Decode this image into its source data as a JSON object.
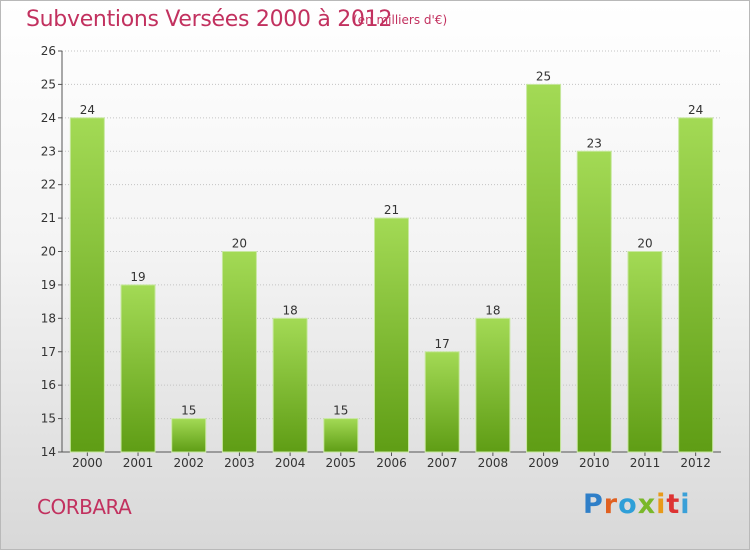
{
  "header": {
    "title": "Subventions Versées 2000 à 2012",
    "subtitle": "(en milliers d'€)"
  },
  "footer": {
    "city": "CORBARA",
    "logo_text": "Proxiti"
  },
  "colors": {
    "title": "#c2315f",
    "bar_light": "#9ed64f",
    "bar_dark": "#62a018",
    "grid": "#bbbbbb"
  },
  "chart_data": {
    "type": "bar",
    "title": "Subventions Versées 2000 à 2012",
    "subtitle": "(en milliers d'€)",
    "xlabel": "",
    "ylabel": "",
    "categories": [
      "2000",
      "2001",
      "2002",
      "2003",
      "2004",
      "2005",
      "2006",
      "2007",
      "2008",
      "2009",
      "2010",
      "2011",
      "2012"
    ],
    "values": [
      24,
      19,
      15,
      20,
      18,
      15,
      21,
      17,
      18,
      25,
      23,
      20,
      24
    ],
    "ylim": [
      14,
      26
    ],
    "yticks": [
      14,
      15,
      16,
      17,
      18,
      19,
      20,
      21,
      22,
      23,
      24,
      25,
      26
    ],
    "grid": true,
    "legend": "none"
  }
}
